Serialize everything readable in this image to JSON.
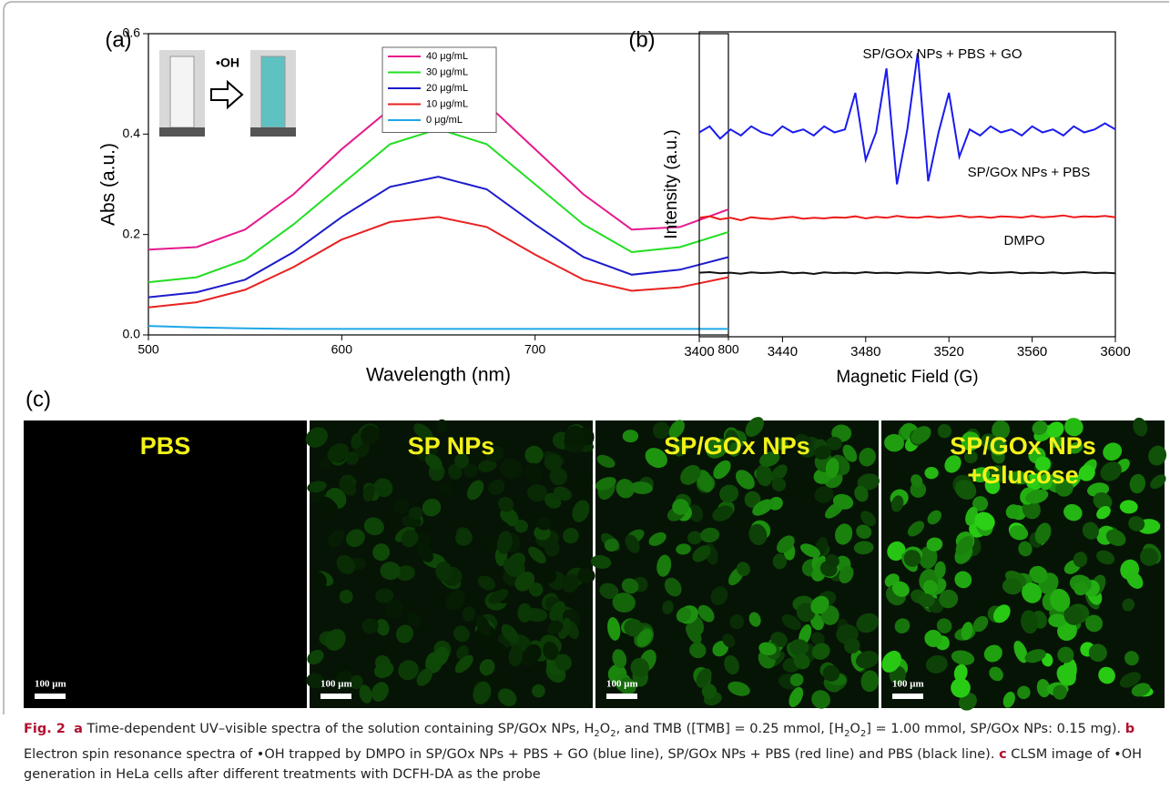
{
  "chart_data": [
    {
      "type": "line",
      "panel_label": "(a)",
      "xlabel": "Wavelength (nm)",
      "ylabel": "Abs (a.u.)",
      "annotation": "•OH",
      "x": [
        500,
        525,
        550,
        575,
        600,
        625,
        650,
        675,
        700,
        725,
        750,
        775,
        800
      ],
      "series": [
        {
          "name": "40 μg/mL",
          "color": "#e6198c",
          "values": [
            0.17,
            0.175,
            0.21,
            0.28,
            0.37,
            0.45,
            0.49,
            0.46,
            0.37,
            0.28,
            0.21,
            0.215,
            0.25
          ]
        },
        {
          "name": "30 μg/mL",
          "color": "#22dd22",
          "values": [
            0.105,
            0.115,
            0.15,
            0.22,
            0.3,
            0.38,
            0.41,
            0.38,
            0.3,
            0.22,
            0.165,
            0.175,
            0.205
          ]
        },
        {
          "name": "20 μg/mL",
          "color": "#1c1ccc",
          "values": [
            0.075,
            0.085,
            0.11,
            0.165,
            0.235,
            0.295,
            0.315,
            0.29,
            0.22,
            0.155,
            0.12,
            0.13,
            0.155
          ]
        },
        {
          "name": "10 μg/mL",
          "color": "#e82222",
          "values": [
            0.055,
            0.065,
            0.09,
            0.135,
            0.19,
            0.225,
            0.235,
            0.215,
            0.16,
            0.11,
            0.088,
            0.095,
            0.115
          ]
        },
        {
          "name": "0 μg/mL",
          "color": "#1ea6e6",
          "values": [
            0.018,
            0.015,
            0.013,
            0.012,
            0.012,
            0.012,
            0.012,
            0.012,
            0.012,
            0.012,
            0.012,
            0.012,
            0.012
          ]
        }
      ],
      "xlim": [
        500,
        800
      ],
      "xticks": [
        500,
        600,
        700,
        800
      ],
      "ylim": [
        0,
        0.6
      ],
      "yticks": [
        {
          "value": 0,
          "label": "0.0"
        },
        0.2,
        0.4,
        0.6
      ]
    },
    {
      "type": "line",
      "panel_label": "(b)",
      "xlabel": "Magnetic Field (G)",
      "ylabel": "Intensity (a.u.)",
      "annotations": [
        "SP/GOx NPs + PBS + GO",
        "SP/GOx NPs + PBS",
        "DMPO"
      ],
      "x": [
        3400,
        3405,
        3410,
        3415,
        3420,
        3425,
        3430,
        3435,
        3440,
        3445,
        3450,
        3455,
        3460,
        3465,
        3470,
        3475,
        3480,
        3485,
        3490,
        3495,
        3500,
        3505,
        3510,
        3515,
        3520,
        3525,
        3530,
        3535,
        3540,
        3545,
        3550,
        3555,
        3560,
        3565,
        3570,
        3575,
        3580,
        3585,
        3590,
        3595,
        3600
      ],
      "series": [
        {
          "name": "SP/GOx NPs + PBS + GO",
          "color": "#1a1aee",
          "values": [
            6.7,
            6.9,
            6.5,
            6.8,
            6.6,
            6.9,
            6.7,
            6.6,
            6.9,
            6.7,
            6.8,
            6.6,
            6.9,
            6.7,
            6.8,
            8.0,
            5.8,
            6.7,
            8.8,
            5.0,
            6.8,
            9.3,
            5.1,
            6.7,
            8.0,
            5.9,
            6.8,
            6.6,
            6.9,
            6.7,
            6.8,
            6.6,
            6.9,
            6.7,
            6.8,
            6.6,
            6.9,
            6.7,
            6.8,
            7.0,
            6.8
          ]
        },
        {
          "name": "SP/GOx NPs + PBS",
          "color": "#ee1a1a",
          "values": [
            3.9,
            3.95,
            3.85,
            3.9,
            3.82,
            3.92,
            3.88,
            3.86,
            3.9,
            3.93,
            3.87,
            3.9,
            3.88,
            3.92,
            3.9,
            3.95,
            3.88,
            3.93,
            3.9,
            3.96,
            3.92,
            3.9,
            3.95,
            3.91,
            3.93,
            3.97,
            3.92,
            3.94,
            3.9,
            3.95,
            3.93,
            3.91,
            3.96,
            3.92,
            3.94,
            3.98,
            3.92,
            3.95,
            3.93,
            3.96,
            3.92
          ]
        },
        {
          "name": "DMPO",
          "color": "#111111",
          "values": [
            2.1,
            2.12,
            2.08,
            2.1,
            2.07,
            2.11,
            2.09,
            2.1,
            2.13,
            2.08,
            2.1,
            2.06,
            2.11,
            2.09,
            2.1,
            2.08,
            2.12,
            2.09,
            2.1,
            2.08,
            2.11,
            2.1,
            2.09,
            2.12,
            2.08,
            2.1,
            2.07,
            2.11,
            2.09,
            2.1,
            2.12,
            2.08,
            2.1,
            2.09,
            2.11,
            2.08,
            2.1,
            2.12,
            2.09,
            2.1,
            2.08
          ]
        }
      ],
      "xlim": [
        3400,
        3600
      ],
      "xticks": [
        3400,
        3440,
        3480,
        3520,
        3560,
        3600
      ],
      "ylim": [
        0,
        10
      ]
    }
  ],
  "panel_c": {
    "panel_label": "(c)",
    "images": [
      {
        "label": [
          "PBS"
        ],
        "scale_bar": "100 μm"
      },
      {
        "label": [
          "SP NPs"
        ],
        "scale_bar": "100 μm"
      },
      {
        "label": [
          "SP/GOx NPs"
        ],
        "scale_bar": "100 μm"
      },
      {
        "label": [
          "SP/GOx NPs",
          "+Glucose"
        ],
        "scale_bar": "100 μm"
      }
    ]
  },
  "caption": [
    "Fig. 2",
    "a",
    " Time-dependent UV–visible spectra of the solution containing SP/GOx NPs, H",
    "2",
    "O",
    "2",
    ", and TMB ([TMB] = 0.25 mmol, [H",
    "2",
    "O",
    "2",
    "] = 1.00 mmol, SP/GOx NPs: 0.15 mg). ",
    "b",
    " Electron spin resonance spectra of •OH trapped by DMPO in SP/GOx NPs + PBS + GO (blue line), SP/GOx NPs + PBS (red line) and PBS (black line). ",
    "c",
    " CLSM image of •OH generation in HeLa cells after different treatments with DCFH-DA as the probe"
  ]
}
